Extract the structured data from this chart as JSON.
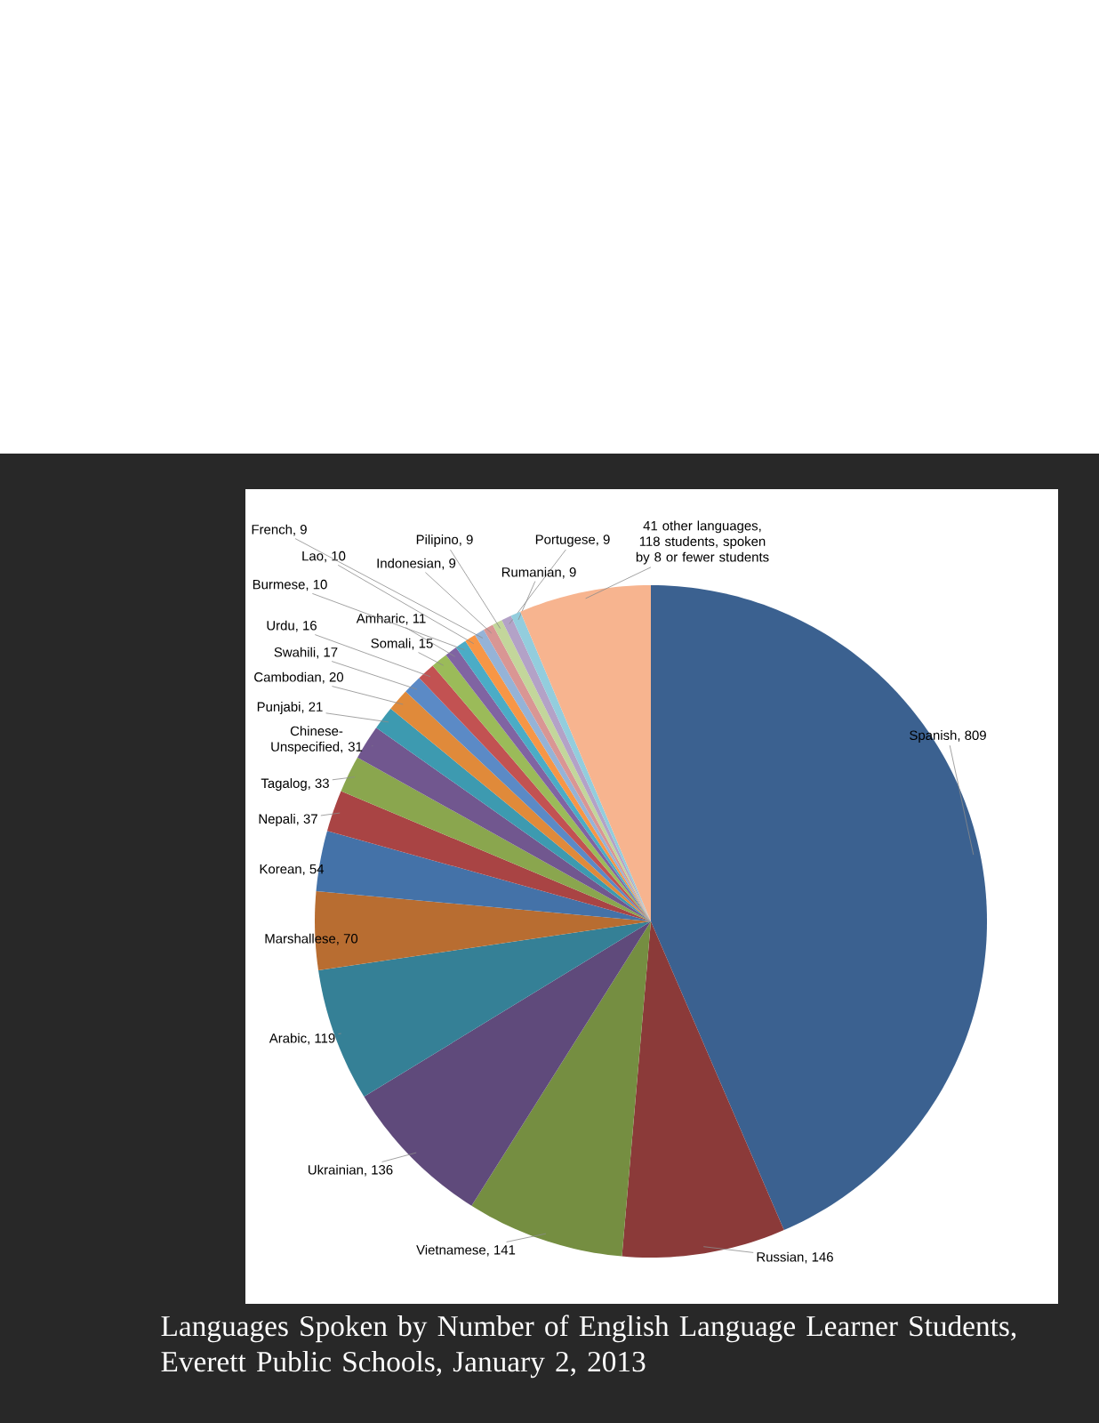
{
  "chart_data": {
    "type": "pie",
    "title": "Languages Spoken by Number of English Language Learner Students, Everett Public Schools, January 2, 2013",
    "categories": [
      "Spanish, 809",
      "Russian, 146",
      "Vietnamese, 141",
      "Ukrainian, 136",
      "Arabic, 119",
      "Marshallese, 70",
      "Korean, 54",
      "Nepali, 37",
      "Tagalog, 33",
      "Chinese-Unspecified, 31",
      "Punjabi, 21",
      "Cambodian, 20",
      "Swahili, 17",
      "Urdu, 16",
      "Somali, 15",
      "Amharic, 11",
      "Burmese, 10",
      "Lao, 10",
      "French, 9",
      "Indonesian, 9",
      "Pilipino, 9",
      "Portugese, 9",
      "Rumanian, 9",
      "41 other languages, 118 students, spoken by 8 or fewer students"
    ],
    "values": [
      809,
      146,
      141,
      136,
      119,
      70,
      54,
      37,
      33,
      31,
      21,
      20,
      17,
      16,
      15,
      11,
      10,
      10,
      9,
      9,
      9,
      9,
      9,
      118
    ],
    "colors": [
      "#3b6190",
      "#8b3a39",
      "#758e41",
      "#5f4a7b",
      "#358096",
      "#b86d31",
      "#4472a8",
      "#a94444",
      "#8aa64e",
      "#71578f",
      "#3d9ab0",
      "#e08a3a",
      "#5b8ac6",
      "#c25252",
      "#9bbb59",
      "#8064a2",
      "#4bacc6",
      "#f79646",
      "#95b3d7",
      "#d99694",
      "#c3d69b",
      "#b3a2c7",
      "#93cddd",
      "#f7b48f"
    ]
  }
}
